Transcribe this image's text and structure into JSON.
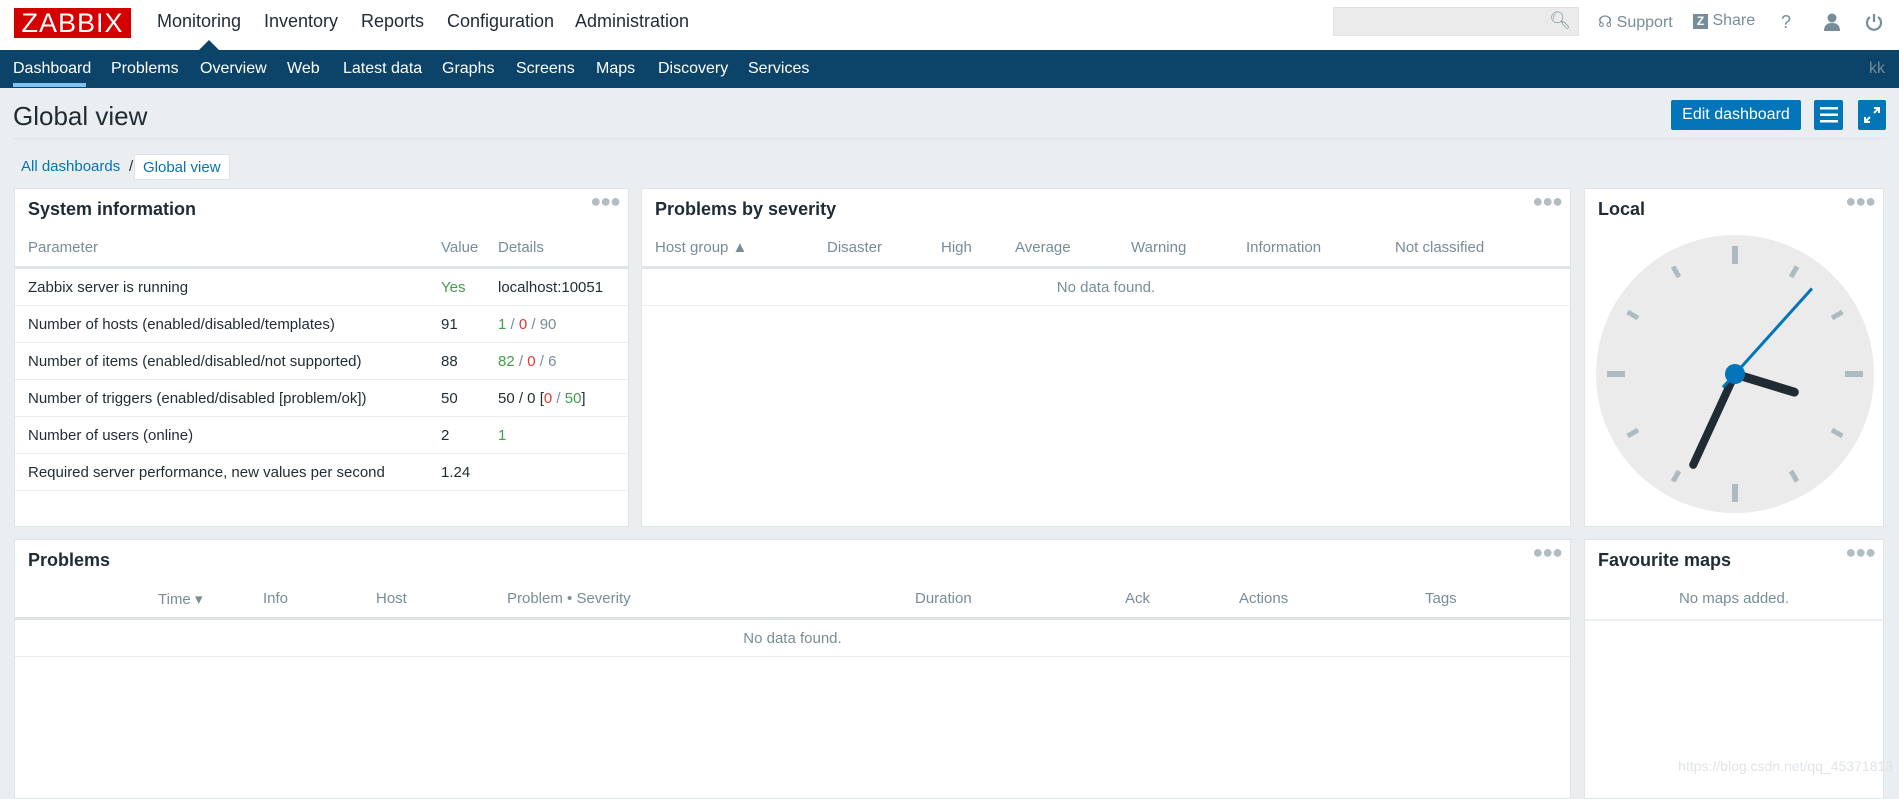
{
  "header": {
    "logo": "ZABBIX",
    "nav": [
      "Monitoring",
      "Inventory",
      "Reports",
      "Configuration",
      "Administration"
    ],
    "search_placeholder": "",
    "support": "Support",
    "share": "Share",
    "help": "?"
  },
  "subnav": {
    "items": [
      "Dashboard",
      "Problems",
      "Overview",
      "Web",
      "Latest data",
      "Graphs",
      "Screens",
      "Maps",
      "Discovery",
      "Services"
    ],
    "user": "kk"
  },
  "page": {
    "title": "Global view",
    "edit_button": "Edit dashboard"
  },
  "breadcrumb": [
    "All dashboards",
    "/",
    "Global view"
  ],
  "system_info": {
    "title": "System information",
    "headers": [
      "Parameter",
      "Value",
      "Details"
    ],
    "rows": [
      {
        "param": "Zabbix server is running",
        "value": "Yes",
        "details": [
          {
            "t": "localhost:10051",
            "c": ""
          }
        ]
      },
      {
        "param": "Number of hosts (enabled/disabled/templates)",
        "value": "91",
        "details": [
          {
            "t": "1",
            "c": "g"
          },
          {
            "t": " / ",
            "c": "gr"
          },
          {
            "t": "0",
            "c": "r"
          },
          {
            "t": " / ",
            "c": "gr"
          },
          {
            "t": "90",
            "c": "gr"
          }
        ]
      },
      {
        "param": "Number of items (enabled/disabled/not supported)",
        "value": "88",
        "details": [
          {
            "t": "82",
            "c": "g"
          },
          {
            "t": " / ",
            "c": "gr"
          },
          {
            "t": "0",
            "c": "r"
          },
          {
            "t": " / ",
            "c": "gr"
          },
          {
            "t": "6",
            "c": "gr"
          }
        ]
      },
      {
        "param": "Number of triggers (enabled/disabled [problem/ok])",
        "value": "50",
        "details": [
          {
            "t": "50 / 0 [",
            "c": ""
          },
          {
            "t": "0",
            "c": "r"
          },
          {
            "t": " / ",
            "c": "gr"
          },
          {
            "t": "50",
            "c": "g"
          },
          {
            "t": "]",
            "c": ""
          }
        ]
      },
      {
        "param": "Number of users (online)",
        "value": "2",
        "details": [
          {
            "t": "1",
            "c": "g"
          }
        ]
      },
      {
        "param": "Required server performance, new values per second",
        "value": "1.24",
        "details": []
      }
    ]
  },
  "severity": {
    "title": "Problems by severity",
    "headers": [
      "Host group ▲",
      "Disaster",
      "High",
      "Average",
      "Warning",
      "Information",
      "Not classified"
    ],
    "empty": "No data found."
  },
  "clock": {
    "title": "Local",
    "hours": 3,
    "minutes": 34,
    "seconds": 7
  },
  "problems": {
    "title": "Problems",
    "headers": [
      "Time ▾",
      "Info",
      "Host",
      "Problem • Severity",
      "Duration",
      "Ack",
      "Actions",
      "Tags"
    ],
    "empty": "No data found."
  },
  "maps": {
    "title": "Favourite maps",
    "empty": "No maps added."
  },
  "watermark": "https://blog.csdn.net/qq_45371813",
  "colors": {
    "accent": "#0275b8",
    "navbar": "#0b4468",
    "ok": "#429e47",
    "problem": "#e33734"
  }
}
